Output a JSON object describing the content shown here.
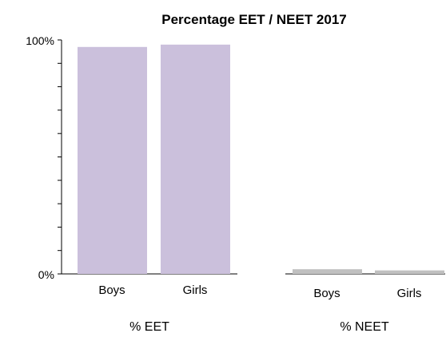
{
  "chart_data": {
    "type": "bar",
    "title": "Percentage EET / NEET 2017",
    "yticks": [
      "100%",
      "0%"
    ],
    "ylim": [
      0,
      100
    ],
    "groups": [
      {
        "name": "% EET",
        "color": "#cbc0dc",
        "categories": [
          "Boys",
          "Girls"
        ],
        "values": [
          97,
          98
        ]
      },
      {
        "name": "% NEET",
        "color": "#c0c0c0",
        "categories": [
          "Boys",
          "Girls"
        ],
        "values": [
          2,
          1.5
        ]
      }
    ]
  }
}
